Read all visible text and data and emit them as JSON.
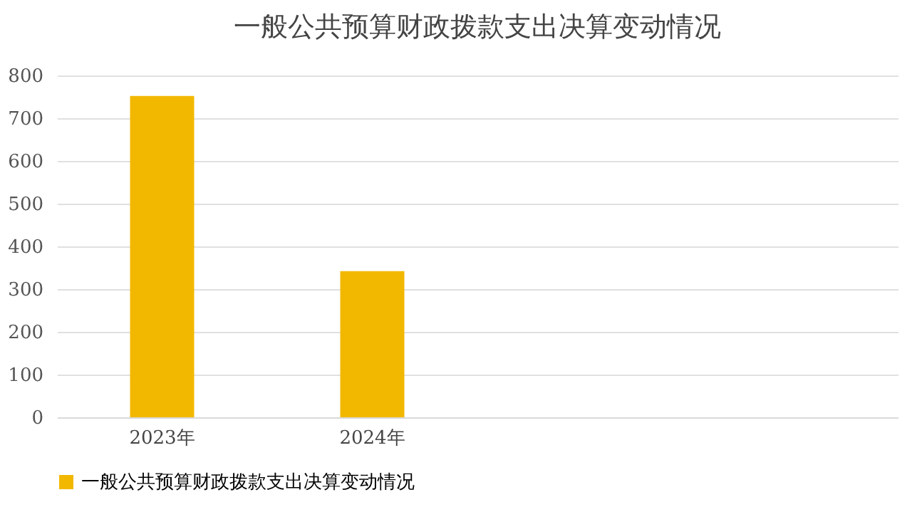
{
  "chart_data": {
    "type": "bar",
    "title": "一般公共预算财政拨款支出决算变动情况",
    "categories": [
      "2023年",
      "2024年",
      null,
      null
    ],
    "series": [
      {
        "name": "一般公共预算财政拨款支出决算变动情况",
        "color": "#f2b800",
        "values": [
          752,
          342,
          null,
          null
        ]
      }
    ],
    "ylim": [
      0,
      800
    ],
    "yticks": [
      0,
      100,
      200,
      300,
      400,
      500,
      600,
      700,
      800
    ],
    "grid": "y",
    "legend": "bottom"
  }
}
